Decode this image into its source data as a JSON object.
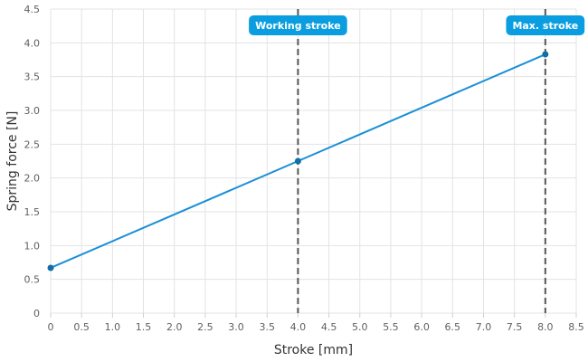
{
  "chart_data": {
    "type": "line",
    "xlabel": "Stroke [mm]",
    "ylabel": "Spring force [N]",
    "xlim": [
      0,
      8.5
    ],
    "ylim": [
      0,
      4.5
    ],
    "xticks": [
      0,
      0.5,
      1.0,
      1.5,
      2.0,
      2.5,
      3.0,
      3.5,
      4.0,
      4.5,
      5.0,
      5.5,
      6.0,
      6.5,
      7.0,
      7.5,
      8.0,
      8.5
    ],
    "xtick_labels": [
      "0",
      "0.5",
      "1.0",
      "1.5",
      "2.0",
      "2.5",
      "3.0",
      "3.5",
      "4.0",
      "4.5",
      "5.0",
      "5.5",
      "6.0",
      "6.5",
      "7.0",
      "7.5",
      "8.0",
      "8.5"
    ],
    "yticks": [
      0,
      0.5,
      1.0,
      1.5,
      2.0,
      2.5,
      3.0,
      3.5,
      4.0,
      4.5
    ],
    "ytick_labels": [
      "0",
      "0.5",
      "1.0",
      "1.5",
      "2.0",
      "2.5",
      "3.0",
      "3.5",
      "4.0",
      "4.5"
    ],
    "grid": true,
    "series": [
      {
        "x": [
          0,
          4.0,
          8.0
        ],
        "y": [
          0.67,
          2.25,
          3.83
        ],
        "color": "#1a8fd6",
        "marker_color": "#106ea8"
      }
    ],
    "reference_lines": [
      {
        "x": 4.0,
        "label": "Working stroke",
        "style": "dashed"
      },
      {
        "x": 8.0,
        "label": "Max. stroke",
        "style": "dashed"
      }
    ],
    "label_color": "#0a9ee0",
    "reference_line_color": "#555555"
  }
}
